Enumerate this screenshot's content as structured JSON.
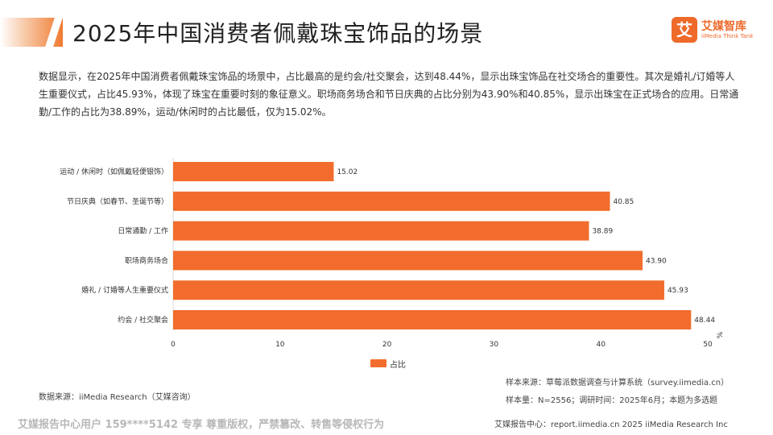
{
  "header": {
    "title": "2025年中国消费者佩戴珠宝饰品的场景"
  },
  "logo": {
    "mark": "艾",
    "name_cn": "艾媒智库",
    "name_en": "iiMedia Think Tank"
  },
  "summary": "数据显示，在2025年中国消费者佩戴珠宝饰品的场景中，占比最高的是约会/社交聚会，达到48.44%，显示出珠宝饰品在社交场合的重要性。其次是婚礼/订婚等人生重要仪式，占比45.93%，体现了珠宝在重要时刻的象征意义。职场商务场合和节日庆典的占比分别为43.90%和40.85%，显示出珠宝在正式场合的应用。日常通勤/工作的占比为38.89%，运动/休闲时的占比最低，仅为15.02%。",
  "chart_data": {
    "type": "bar",
    "orientation": "horizontal",
    "categories": [
      "运动 / 休闲时（如佩戴轻便银饰）",
      "节日庆典（如春节、圣诞节等）",
      "日常通勤 / 工作",
      "职场商务场合",
      "婚礼 / 订婚等人生重要仪式",
      "约会 / 社交聚会"
    ],
    "series": [
      {
        "name": "占比",
        "values": [
          15.02,
          40.85,
          38.89,
          43.9,
          45.93,
          48.44
        ]
      }
    ],
    "value_labels": [
      "15.02",
      "40.85",
      "38.89",
      "43.90",
      "45.93",
      "48.44"
    ],
    "xlim": [
      0,
      50
    ],
    "xticks": [
      "0",
      "10",
      "20",
      "30",
      "40",
      "50"
    ],
    "unit": "%",
    "legend": "bottom-center",
    "grid": false,
    "color": "#f26d2d"
  },
  "notes": {
    "source_left": "数据来源：iiMedia Research（艾媒咨询）",
    "sample_source": "样本来源：草莓派数据调查与计算系统（survey.iimedia.cn）",
    "sample_size": "样本量：N=2556；调研时间：2025年6月；本题为多选题"
  },
  "footer": {
    "watermark": "艾媒报告中心用户 159****5142 专享 尊重版权，严禁篡改、转售等侵权行为",
    "right": "艾媒报告中心：report.iimedia.cn  2025 iiMedia Research Inc"
  }
}
